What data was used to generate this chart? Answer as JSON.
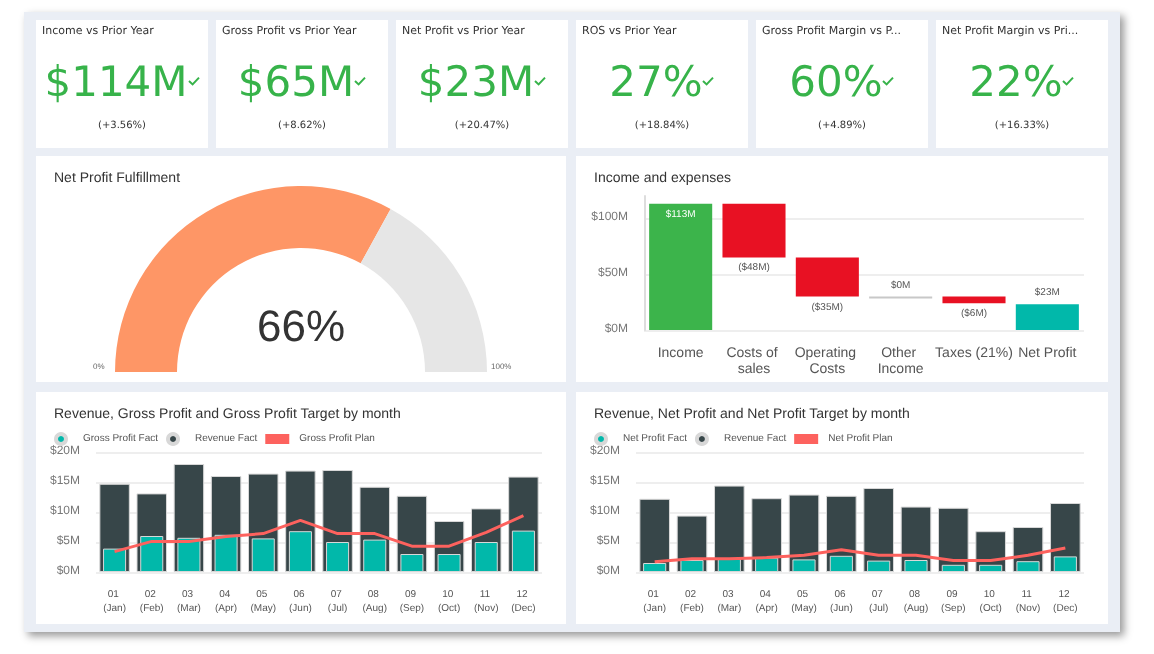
{
  "chart_data": [
    {
      "type": "other",
      "title": "Income vs Prior Year",
      "annotations": [
        "$114M",
        "(+3.56%)"
      ]
    },
    {
      "type": "other",
      "title": "Gross Profit vs Prior Year",
      "annotations": [
        "$65M",
        "(+8.62%)"
      ]
    },
    {
      "type": "other",
      "title": "Net Profit vs Prior Year",
      "annotations": [
        "$23M",
        "(+20.47%)"
      ]
    },
    {
      "type": "other",
      "title": "ROS vs Prior Year",
      "annotations": [
        "27%",
        "(+18.84%)"
      ]
    },
    {
      "type": "other",
      "title": "Gross Profit Margin vs P...",
      "annotations": [
        "60%",
        "(+4.89%)"
      ]
    },
    {
      "type": "other",
      "title": "Net Profit Margin vs Pri...",
      "annotations": [
        "22%",
        "(+16.33%)"
      ]
    },
    {
      "type": "donut",
      "title": "Net Profit Fulfillment",
      "categories": [
        null,
        null
      ],
      "values": [
        66,
        34
      ],
      "colors": [
        "#fe9666",
        "#e6e6e6"
      ],
      "annotations": [
        "66%",
        "0%",
        "100%"
      ]
    },
    {
      "type": "bar",
      "title": "Income and expenses",
      "categories": [
        "Income",
        "Costs of sales",
        "Operating Costs",
        "Other Income",
        "Taxes (21%)",
        "Net Profit"
      ],
      "values": [
        113,
        -48,
        -35,
        0,
        -6,
        23
      ],
      "base": [
        0,
        113,
        65,
        30,
        30,
        0
      ],
      "colors": [
        "#3cb44b",
        "#e81123",
        "#e81123",
        "#c8c8c8",
        "#e81123",
        "#01b8aa"
      ],
      "value_labels": [
        "$113M",
        "($48M)",
        "($35M)",
        "$0M",
        "($6M)",
        "$23M"
      ],
      "ylim": [
        0,
        120
      ],
      "yticks": [
        {
          "value": 0,
          "label": "$0M"
        },
        {
          "value": 50,
          "label": "$50M"
        },
        {
          "value": 100,
          "label": "$100M"
        }
      ],
      "grid": "y"
    },
    {
      "type": "bar",
      "title": "Revenue, Gross Profit and Gross Profit Target by month",
      "categories": [
        "01 (Jan)",
        "02 (Feb)",
        "03 (Mar)",
        "04 (Apr)",
        "05 (May)",
        "06 (Jun)",
        "07 (Jul)",
        "08 (Aug)",
        "09 (Sep)",
        "10 (Oct)",
        "11 (Nov)",
        "12 (Dec)"
      ],
      "series": [
        {
          "name": "Gross Profit Fact",
          "color": "#01b8aa",
          "values": [
            3.9,
            6.0,
            5.7,
            6.2,
            5.6,
            6.8,
            5.0,
            5.4,
            3.0,
            3.0,
            5.0,
            6.9
          ]
        },
        {
          "name": "Revenue Fact",
          "color": "#374649",
          "values": [
            14.7,
            13.1,
            18.0,
            16.0,
            16.4,
            16.9,
            17.0,
            14.2,
            12.7,
            8.5,
            10.6,
            15.9
          ]
        },
        {
          "name": "Gross Profit Plan",
          "type": "line",
          "color": "#fd625e",
          "values": [
            3.4,
            5.1,
            5.1,
            5.9,
            6.4,
            8.6,
            6.4,
            6.4,
            4.3,
            4.3,
            6.6,
            9.4
          ]
        }
      ],
      "ylim": [
        0,
        20
      ],
      "yticks": [
        {
          "value": 0,
          "label": "$0M"
        },
        {
          "value": 5,
          "label": "$5M"
        },
        {
          "value": 10,
          "label": "$10M"
        },
        {
          "value": 15,
          "label": "$15M"
        },
        {
          "value": 20,
          "label": "$20M"
        }
      ],
      "grid": "y",
      "legend": "top left",
      "marker": "none"
    },
    {
      "type": "bar",
      "title": "Revenue, Net Profit and Net Profit Target by month",
      "categories": [
        "01 (Jan)",
        "02 (Feb)",
        "03 (Mar)",
        "04 (Apr)",
        "05 (May)",
        "06 (Jun)",
        "07 (Jul)",
        "08 (Aug)",
        "09 (Sep)",
        "10 (Oct)",
        "11 (Nov)",
        "12 (Dec)"
      ],
      "series": [
        {
          "name": "Net Profit Fact",
          "color": "#01b8aa",
          "values": [
            1.5,
            2.0,
            2.2,
            2.4,
            2.1,
            2.7,
            1.9,
            2.0,
            1.2,
            1.2,
            1.8,
            2.6
          ]
        },
        {
          "name": "Revenue Fact",
          "color": "#374649",
          "values": [
            12.2,
            9.4,
            14.4,
            12.3,
            12.9,
            12.7,
            14.0,
            10.9,
            10.7,
            6.8,
            7.5,
            11.5
          ]
        },
        {
          "name": "Net Profit Plan",
          "type": "line",
          "color": "#fd625e",
          "values": [
            1.7,
            2.2,
            2.2,
            2.4,
            2.8,
            3.7,
            2.8,
            2.8,
            1.9,
            1.9,
            2.8,
            4.0
          ]
        }
      ],
      "ylim": [
        0,
        20
      ],
      "yticks": [
        {
          "value": 0,
          "label": "$0M"
        },
        {
          "value": 5,
          "label": "$5M"
        },
        {
          "value": 10,
          "label": "$10M"
        },
        {
          "value": 15,
          "label": "$15M"
        },
        {
          "value": 20,
          "label": "$20M"
        }
      ],
      "grid": "y",
      "legend": "top left",
      "marker": "none"
    }
  ]
}
